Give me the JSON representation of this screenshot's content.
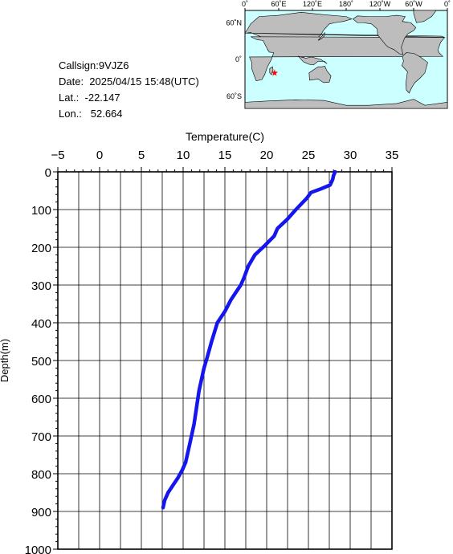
{
  "info": {
    "callsign": "Callsign:9VJZ6",
    "date": "Date:  2025/04/15 15:48(UTC)",
    "lat": "Lat.:  -22.147",
    "lon": "Lon.:   52.664"
  },
  "map": {
    "top_labels": [
      "0˚",
      "60˚E",
      "120˚E",
      "180˚",
      "120˚W",
      "60˚W",
      "0˚"
    ],
    "left_labels": [
      "60˚N",
      "0˚",
      "60˚S"
    ],
    "ocean_color": "#ccffff",
    "land_color": "#bdbdbd",
    "marker_color": "#ff0000",
    "marker": {
      "lon": 52.664,
      "lat": -22.147
    }
  },
  "chart_data": {
    "type": "line",
    "title": "",
    "xlabel": "Temperature(C)",
    "ylabel": "Depth(m)",
    "xlim": [
      -5,
      35
    ],
    "ylim": [
      1000,
      0
    ],
    "x_ticks": [
      "-5",
      "0",
      "5",
      "10",
      "15",
      "20",
      "25",
      "30",
      "35"
    ],
    "y_ticks": [
      "0",
      "100",
      "200",
      "300",
      "400",
      "500",
      "600",
      "700",
      "800",
      "900",
      "1000"
    ],
    "grid": true,
    "line_color": "#1515ee",
    "series": [
      {
        "name": "",
        "x": [
          28.2,
          28.0,
          27.9,
          27.6,
          26.5,
          25.3,
          24.8,
          23.5,
          22.5,
          21.3,
          20.9,
          19.8,
          18.6,
          17.8,
          17.3,
          16.9,
          16.3,
          15.7,
          15.0,
          14.1,
          13.4,
          12.9,
          12.5,
          12.2,
          11.9,
          11.7,
          11.5,
          11.3,
          11.0,
          10.7,
          10.3,
          9.9,
          9.4,
          8.8,
          8.2,
          7.8,
          7.6
        ],
        "y": [
          0,
          10,
          20,
          35,
          45,
          55,
          70,
          100,
          125,
          150,
          170,
          195,
          220,
          250,
          280,
          300,
          320,
          340,
          370,
          400,
          450,
          490,
          520,
          550,
          580,
          610,
          640,
          670,
          700,
          730,
          770,
          790,
          810,
          830,
          850,
          870,
          890
        ]
      }
    ]
  }
}
